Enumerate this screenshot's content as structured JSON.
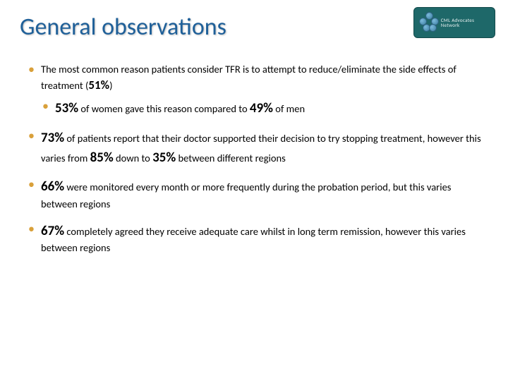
{
  "title": "General observations",
  "logo": {
    "label": "CML Advocates Network",
    "bg_color": "#1e6869",
    "cell_color_light": "#7bbadc",
    "cell_color_dark": "#3a7da0"
  },
  "bullets": {
    "b1_pre": "The most common reason patients consider TFR is to attempt to reduce/eliminate the side effects of treatment (",
    "b1_pct": "51%",
    "b1_post": ")",
    "b1_sub_pct1": "53%",
    "b1_sub_mid": " of women gave this reason compared to ",
    "b1_sub_pct2": "49%",
    "b1_sub_post": " of men",
    "b2_pct": "73%",
    "b2_mid1": " of patients report that their doctor supported their decision to try stopping treatment, however this varies from ",
    "b2_pct2": "85%",
    "b2_mid2": " down to ",
    "b2_pct3": "35%",
    "b2_post": " between different regions",
    "b3_pct": "66%",
    "b3_post": " were monitored every month or more frequently during the probation period, but this varies between regions",
    "b4_pct": "67%",
    "b4_post": " completely agreed they receive adequate care whilst in long term remission, however this varies between regions"
  },
  "colors": {
    "title": "#1f6099",
    "bullet_marker": "#d9a03a",
    "text": "#000000",
    "background": "#ffffff"
  }
}
